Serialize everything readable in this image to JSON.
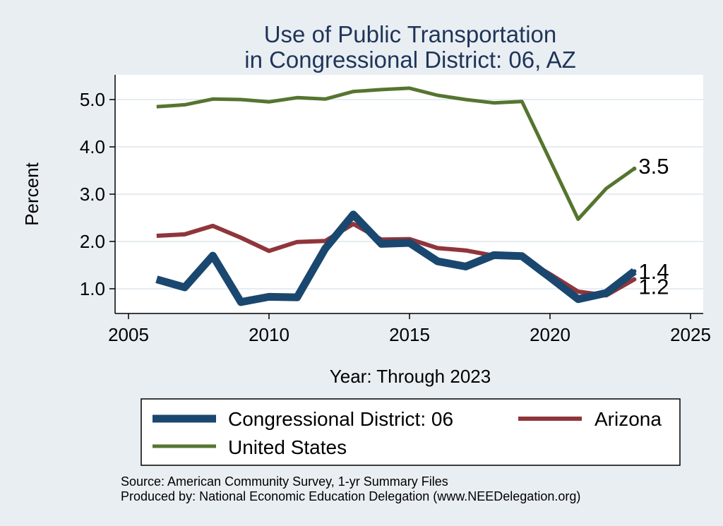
{
  "chart_data": {
    "type": "line",
    "title": "Use of Public Transportation",
    "subtitle": "in Congressional District: 06, AZ",
    "xlabel": "Year: Through 2023",
    "ylabel": "Percent",
    "xlim": [
      2005,
      2025
    ],
    "ylim": [
      0.5,
      5.5
    ],
    "x_ticks": [
      "2005",
      "2010",
      "2015",
      "2020",
      "2025"
    ],
    "y_ticks": [
      "1.0",
      "2.0",
      "3.0",
      "4.0",
      "5.0"
    ],
    "grid": true,
    "legend_position": "bottom",
    "x": [
      2006,
      2007,
      2008,
      2009,
      2010,
      2011,
      2012,
      2013,
      2014,
      2015,
      2016,
      2017,
      2018,
      2019,
      2020,
      2021,
      2022,
      2023
    ],
    "series": [
      {
        "name": "Congressional District: 06",
        "color": "#1a476f",
        "values": [
          1.2,
          1.03,
          1.7,
          0.72,
          0.83,
          0.82,
          1.85,
          2.57,
          1.95,
          1.97,
          1.58,
          1.47,
          1.71,
          1.69,
          1.24,
          0.78,
          0.91,
          1.37
        ],
        "end_label": "1.4"
      },
      {
        "name": "Arizona",
        "color": "#90353b",
        "values": [
          2.12,
          2.15,
          2.33,
          2.08,
          1.8,
          1.99,
          2.01,
          2.37,
          2.04,
          2.05,
          1.86,
          1.81,
          1.7,
          1.66,
          1.31,
          0.94,
          0.86,
          1.2
        ],
        "end_label": "1.2"
      },
      {
        "name": "United States",
        "color": "#55752f",
        "values": [
          4.85,
          4.89,
          5.01,
          5.0,
          4.95,
          5.04,
          5.01,
          5.17,
          5.21,
          5.24,
          5.09,
          5.0,
          4.93,
          4.96,
          3.72,
          2.47,
          3.12,
          3.54
        ],
        "end_label": "3.5"
      }
    ]
  },
  "source": {
    "line1": "Source: American Community Survey, 1-yr Summary Files",
    "line2": "Produced by: National Economic Education Delegation (www.NEEDelegation.org)"
  }
}
